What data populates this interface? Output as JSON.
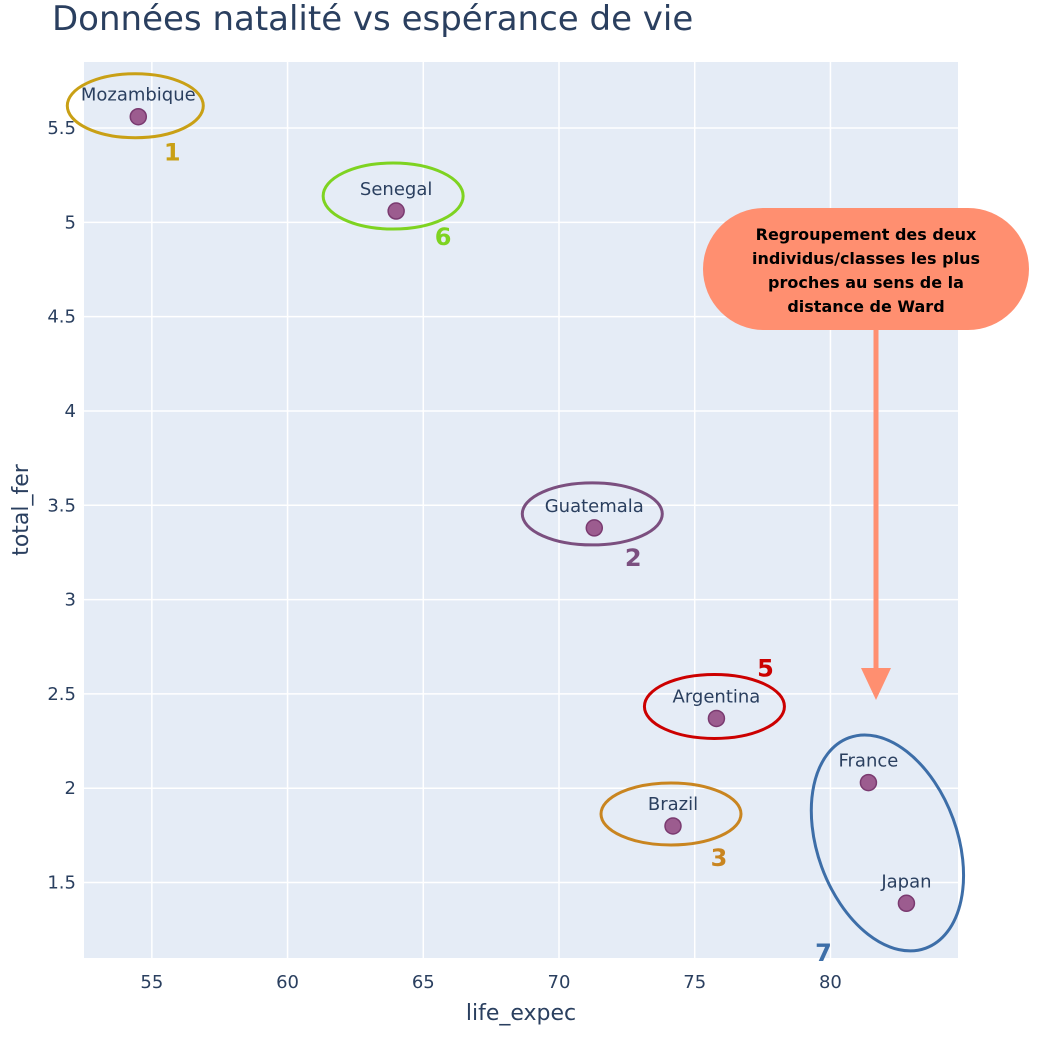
{
  "chart_data": {
    "type": "scatter",
    "title": "Données natalité vs espérance de vie",
    "xlabel": "life_expec",
    "ylabel": "total_fer",
    "xlim": [
      52.5,
      84.7
    ],
    "ylim": [
      1.1,
      5.85
    ],
    "x_ticks": [
      55,
      60,
      65,
      70,
      75,
      80
    ],
    "y_ticks": [
      1.5,
      2,
      2.5,
      3,
      3.5,
      4,
      4.5,
      5,
      5.5
    ],
    "grid": true,
    "plot_bg": "#e5ecf6",
    "marker_color": "#9c5c8f",
    "marker_edge": "#7a3a70",
    "points": [
      {
        "label": "Mozambique",
        "x": 54.5,
        "y": 5.56
      },
      {
        "label": "Senegal",
        "x": 64.0,
        "y": 5.06
      },
      {
        "label": "Guatemala",
        "x": 71.3,
        "y": 3.38
      },
      {
        "label": "Argentina",
        "x": 75.8,
        "y": 2.37
      },
      {
        "label": "France",
        "x": 81.4,
        "y": 2.03
      },
      {
        "label": "Brazil",
        "x": 74.2,
        "y": 1.8
      },
      {
        "label": "Japan",
        "x": 82.8,
        "y": 1.39
      }
    ],
    "clusters": [
      {
        "number": "1",
        "color": "#c9a015",
        "members": [
          "Mozambique"
        ]
      },
      {
        "number": "6",
        "color": "#7ed321",
        "members": [
          "Senegal"
        ]
      },
      {
        "number": "2",
        "color": "#7b4f7f",
        "members": [
          "Guatemala"
        ]
      },
      {
        "number": "5",
        "color": "#cc0000",
        "members": [
          "Argentina"
        ]
      },
      {
        "number": "3",
        "color": "#c98520",
        "members": [
          "Brazil"
        ]
      },
      {
        "number": "7",
        "color": "#3d6ea8",
        "members": [
          "France",
          "Japan"
        ]
      }
    ],
    "annotation": {
      "text_lines": [
        "Regroupement des deux",
        "individus/classes les plus",
        "proches au sens de la",
        "distance de Ward"
      ],
      "bg_color": "#ff8f70",
      "arrow_color": "#ff8f70"
    }
  }
}
